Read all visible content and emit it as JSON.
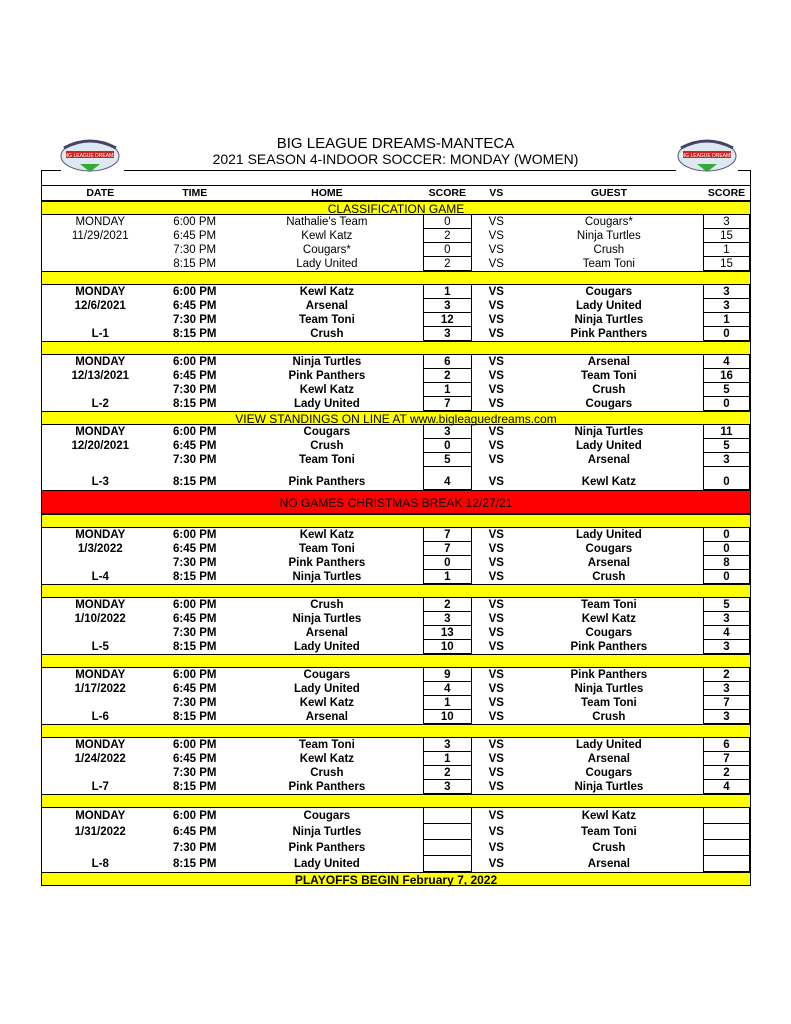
{
  "title": "BIG LEAGUE DREAMS-MANTECA",
  "subtitle": "2021 SEASON 4-INDOOR SOCCER: MONDAY (WOMEN)",
  "logo_text": "BIG LEAGUE DREAMS",
  "headers": {
    "date": "DATE",
    "time": "TIME",
    "home": "HOME",
    "score": "SCORE",
    "vs": "VS",
    "guest": "GUEST",
    "score2": "SCORE"
  },
  "colors": {
    "highlight": "#ffff00",
    "alert": "#ff0000"
  },
  "sections": [
    {
      "type": "bar",
      "text": "CLASSIFICATION GAME"
    },
    {
      "type": "week",
      "style": "normal",
      "games": [
        {
          "date": "MONDAY",
          "time": "6:00 PM",
          "home": "Nathalie's Team",
          "hs": "0",
          "vs": "VS",
          "guest": "Cougars*",
          "gs": "3"
        },
        {
          "date": "11/29/2021",
          "time": "6:45 PM",
          "home": "Kewl Katz",
          "hs": "2",
          "vs": "VS",
          "guest": "Ninja Turtles",
          "gs": "15"
        },
        {
          "date": "",
          "time": "7:30 PM",
          "home": "Cougars*",
          "hs": "0",
          "vs": "VS",
          "guest": "Crush",
          "gs": "1"
        },
        {
          "date": "",
          "time": "8:15 PM",
          "home": "Lady United",
          "hs": "2",
          "vs": "VS",
          "guest": "Team Toni",
          "gs": "15"
        }
      ]
    },
    {
      "type": "bar",
      "text": ""
    },
    {
      "type": "week",
      "games": [
        {
          "date": "MONDAY",
          "time": "6:00 PM",
          "home": "Kewl Katz",
          "hs": "1",
          "vs": "VS",
          "guest": "Cougars",
          "gs": "3"
        },
        {
          "date": "12/6/2021",
          "time": "6:45 PM",
          "home": "Arsenal",
          "hs": "3",
          "vs": "VS",
          "guest": "Lady United",
          "gs": "3"
        },
        {
          "date": "",
          "time": "7:30 PM",
          "home": "Team Toni",
          "hs": "12",
          "vs": "VS",
          "guest": "Ninja Turtles",
          "gs": "1"
        },
        {
          "date": "L-1",
          "time": "8:15 PM",
          "home": "Crush",
          "hs": "3",
          "vs": "VS",
          "guest": "Pink Panthers",
          "gs": "0"
        }
      ]
    },
    {
      "type": "bar",
      "text": ""
    },
    {
      "type": "week",
      "games": [
        {
          "date": "MONDAY",
          "time": "6:00 PM",
          "home": "Ninja Turtles",
          "hs": "6",
          "vs": "VS",
          "guest": "Arsenal",
          "gs": "4"
        },
        {
          "date": "12/13/2021",
          "time": "6:45 PM",
          "home": "Pink Panthers",
          "hs": "2",
          "vs": "VS",
          "guest": "Team Toni",
          "gs": "16"
        },
        {
          "date": "",
          "time": "7:30 PM",
          "home": "Kewl Katz",
          "hs": "1",
          "vs": "VS",
          "guest": "Crush",
          "gs": "5"
        },
        {
          "date": "L-2",
          "time": "8:15 PM",
          "home": "Lady United",
          "hs": "7",
          "vs": "VS",
          "guest": "Cougars",
          "gs": "0"
        }
      ]
    },
    {
      "type": "bar",
      "text": "VIEW STANDINGS ON LINE AT www.bigleaguedreams.com"
    },
    {
      "type": "week",
      "lasttall": true,
      "games": [
        {
          "date": "MONDAY",
          "time": "6:00 PM",
          "home": "Cougars",
          "hs": "3",
          "vs": "VS",
          "guest": "Ninja Turtles",
          "gs": "11"
        },
        {
          "date": "12/20/2021",
          "time": "6:45 PM",
          "home": "Crush",
          "hs": "0",
          "vs": "VS",
          "guest": "Lady United",
          "gs": "5"
        },
        {
          "date": "",
          "time": "7:30 PM",
          "home": "Team Toni",
          "hs": "5",
          "vs": "VS",
          "guest": "Arsenal",
          "gs": "3"
        },
        {
          "date": "L-3",
          "time": "8:15 PM",
          "home": "Pink Panthers",
          "hs": "4",
          "vs": "VS",
          "guest": "Kewl Katz",
          "gs": "0"
        }
      ]
    },
    {
      "type": "red",
      "text": "NO GAMES CHRISTMAS BREAK 12/27/21"
    },
    {
      "type": "bar",
      "text": ""
    },
    {
      "type": "week",
      "games": [
        {
          "date": "MONDAY",
          "time": "6:00 PM",
          "home": "Kewl Katz",
          "hs": "7",
          "vs": "VS",
          "guest": "Lady United",
          "gs": "0"
        },
        {
          "date": "1/3/2022",
          "time": "6:45 PM",
          "home": "Team Toni",
          "hs": "7",
          "vs": "VS",
          "guest": "Cougars",
          "gs": "0"
        },
        {
          "date": "",
          "time": "7:30 PM",
          "home": "Pink Panthers",
          "hs": "0",
          "vs": "VS",
          "guest": "Arsenal",
          "gs": "8"
        },
        {
          "date": "L-4",
          "time": "8:15 PM",
          "home": "Ninja Turtles",
          "hs": "1",
          "vs": "VS",
          "guest": "Crush",
          "gs": "0"
        }
      ]
    },
    {
      "type": "bar",
      "text": ""
    },
    {
      "type": "week",
      "games": [
        {
          "date": "MONDAY",
          "time": "6:00 PM",
          "home": "Crush",
          "hs": "2",
          "vs": "VS",
          "guest": "Team Toni",
          "gs": "5"
        },
        {
          "date": "1/10/2022",
          "time": "6:45 PM",
          "home": "Ninja Turtles",
          "hs": "3",
          "vs": "VS",
          "guest": "Kewl Katz",
          "gs": "3"
        },
        {
          "date": "",
          "time": "7:30 PM",
          "home": "Arsenal",
          "hs": "13",
          "vs": "VS",
          "guest": "Cougars",
          "gs": "4"
        },
        {
          "date": "L-5",
          "time": "8:15 PM",
          "home": "Lady United",
          "hs": "10",
          "vs": "VS",
          "guest": "Pink Panthers",
          "gs": "3"
        }
      ]
    },
    {
      "type": "bar",
      "text": ""
    },
    {
      "type": "week",
      "games": [
        {
          "date": "MONDAY",
          "time": "6:00 PM",
          "home": "Cougars",
          "hs": "9",
          "vs": "VS",
          "guest": "Pink Panthers",
          "gs": "2"
        },
        {
          "date": "1/17/2022",
          "time": "6:45 PM",
          "home": "Lady United",
          "hs": "4",
          "vs": "VS",
          "guest": "Ninja Turtles",
          "gs": "3"
        },
        {
          "date": "",
          "time": "7:30 PM",
          "home": "Kewl Katz",
          "hs": "1",
          "vs": "VS",
          "guest": "Team Toni",
          "gs": "7"
        },
        {
          "date": "L-6",
          "time": "8:15 PM",
          "home": "Arsenal",
          "hs": "10",
          "vs": "VS",
          "guest": "Crush",
          "gs": "3"
        }
      ]
    },
    {
      "type": "bar",
      "text": ""
    },
    {
      "type": "week",
      "games": [
        {
          "date": "MONDAY",
          "time": "6:00 PM",
          "home": "Team Toni",
          "hs": "3",
          "vs": "VS",
          "guest": "Lady United",
          "gs": "6"
        },
        {
          "date": "1/24/2022",
          "time": "6:45 PM",
          "home": "Kewl Katz",
          "hs": "1",
          "vs": "VS",
          "guest": "Arsenal",
          "gs": "7"
        },
        {
          "date": "",
          "time": "7:30 PM",
          "home": "Crush",
          "hs": "2",
          "vs": "VS",
          "guest": "Cougars",
          "gs": "2"
        },
        {
          "date": "L-7",
          "time": "8:15 PM",
          "home": "Pink Panthers",
          "hs": "3",
          "vs": "VS",
          "guest": "Ninja Turtles",
          "gs": "4"
        }
      ]
    },
    {
      "type": "bar",
      "text": ""
    },
    {
      "type": "week",
      "row16": true,
      "games": [
        {
          "date": "MONDAY",
          "time": "6:00 PM",
          "home": "Cougars",
          "hs": "",
          "vs": "VS",
          "guest": "Kewl Katz",
          "gs": ""
        },
        {
          "date": "1/31/2022",
          "time": "6:45 PM",
          "home": "Ninja Turtles",
          "hs": "",
          "vs": "VS",
          "guest": "Team Toni",
          "gs": ""
        },
        {
          "date": "",
          "time": "7:30 PM",
          "home": "Pink Panthers",
          "hs": "",
          "vs": "VS",
          "guest": "Crush",
          "gs": ""
        },
        {
          "date": "L-8",
          "time": "8:15 PM",
          "home": "Lady United",
          "hs": "",
          "vs": "VS",
          "guest": "Arsenal",
          "gs": ""
        }
      ]
    },
    {
      "type": "bar",
      "bold": true,
      "text": "PLAYOFFS BEGIN February 7, 2022"
    }
  ]
}
